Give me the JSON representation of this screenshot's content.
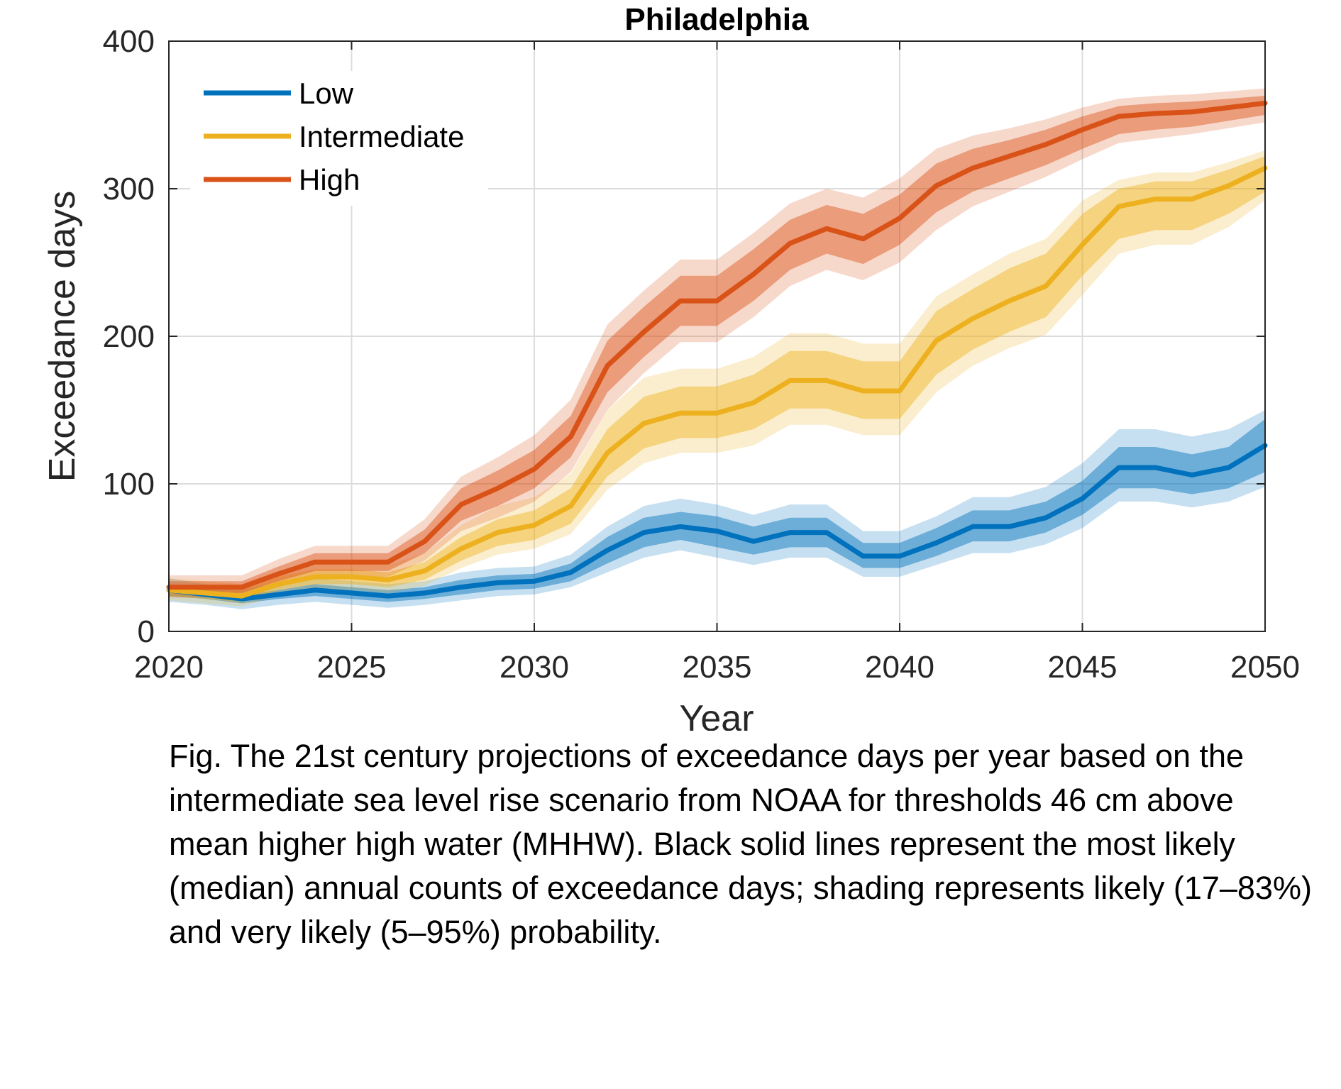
{
  "chart_data": {
    "type": "line",
    "title": "Philadelphia",
    "xlabel": "Year",
    "ylabel": "Exceedance days",
    "xlim": [
      2020,
      2050
    ],
    "ylim": [
      0,
      400
    ],
    "xticks": [
      "2020",
      "2025",
      "2030",
      "2035",
      "2040",
      "2045",
      "2050"
    ],
    "yticks": [
      "0",
      "100",
      "200",
      "300",
      "400"
    ],
    "grid": true,
    "legend_position": "top-left",
    "x": [
      2020,
      2021,
      2022,
      2023,
      2024,
      2025,
      2026,
      2027,
      2028,
      2029,
      2030,
      2031,
      2032,
      2033,
      2034,
      2035,
      2036,
      2037,
      2038,
      2039,
      2040,
      2041,
      2042,
      2043,
      2044,
      2045,
      2046,
      2047,
      2048,
      2049,
      2050
    ],
    "series": [
      {
        "name": "Low",
        "color": "#0072bd",
        "median": [
          28,
          25,
          22,
          25,
          28,
          26,
          24,
          26,
          30,
          33,
          34,
          40,
          55,
          67,
          71,
          68,
          61,
          67,
          67,
          51,
          51,
          60,
          71,
          71,
          77,
          90,
          111,
          111,
          106,
          111,
          126
        ],
        "likely_lo": [
          24,
          22,
          19,
          22,
          24,
          22,
          20,
          22,
          25,
          28,
          29,
          34,
          46,
          57,
          62,
          57,
          52,
          57,
          57,
          43,
          43,
          51,
          61,
          61,
          67,
          79,
          97,
          97,
          93,
          97,
          108
        ],
        "likely_hi": [
          32,
          28,
          25,
          28,
          32,
          30,
          28,
          30,
          35,
          38,
          39,
          46,
          64,
          77,
          81,
          78,
          71,
          77,
          77,
          60,
          60,
          70,
          82,
          82,
          88,
          102,
          125,
          125,
          120,
          125,
          144
        ],
        "vlikely_lo": [
          20,
          18,
          15,
          18,
          20,
          18,
          16,
          18,
          21,
          24,
          25,
          30,
          40,
          50,
          55,
          50,
          45,
          50,
          50,
          37,
          37,
          45,
          53,
          53,
          59,
          70,
          88,
          88,
          84,
          88,
          98
        ],
        "vlikely_hi": [
          36,
          32,
          29,
          32,
          36,
          34,
          32,
          34,
          40,
          43,
          44,
          52,
          71,
          85,
          90,
          86,
          79,
          86,
          86,
          68,
          68,
          78,
          91,
          91,
          98,
          114,
          137,
          137,
          132,
          137,
          150
        ]
      },
      {
        "name": "Intermediate",
        "color": "#edb120",
        "median": [
          28,
          26,
          24,
          32,
          37,
          37,
          35,
          41,
          56,
          67,
          72,
          85,
          121,
          141,
          148,
          148,
          155,
          170,
          170,
          163,
          163,
          197,
          212,
          224,
          234,
          262,
          288,
          293,
          293,
          302,
          314
        ],
        "likely_lo": [
          24,
          22,
          20,
          28,
          32,
          32,
          30,
          35,
          48,
          58,
          62,
          73,
          105,
          124,
          131,
          131,
          137,
          151,
          151,
          144,
          144,
          174,
          191,
          203,
          213,
          241,
          266,
          272,
          272,
          283,
          298
        ],
        "likely_hi": [
          32,
          30,
          28,
          37,
          42,
          42,
          40,
          47,
          64,
          76,
          82,
          97,
          137,
          159,
          166,
          166,
          174,
          190,
          190,
          183,
          183,
          217,
          232,
          246,
          256,
          283,
          300,
          305,
          305,
          313,
          322
        ],
        "vlikely_lo": [
          21,
          19,
          17,
          24,
          28,
          28,
          26,
          31,
          43,
          52,
          56,
          66,
          96,
          114,
          121,
          121,
          126,
          140,
          140,
          133,
          133,
          162,
          180,
          192,
          201,
          228,
          256,
          262,
          262,
          274,
          292
        ],
        "vlikely_hi": [
          36,
          34,
          32,
          41,
          47,
          47,
          45,
          53,
          72,
          85,
          91,
          107,
          150,
          172,
          178,
          178,
          186,
          202,
          202,
          195,
          195,
          227,
          242,
          256,
          266,
          292,
          306,
          311,
          311,
          318,
          326
        ]
      },
      {
        "name": "High",
        "color": "#d95319",
        "median": [
          30,
          30,
          30,
          39,
          47,
          47,
          47,
          61,
          86,
          97,
          110,
          132,
          180,
          203,
          224,
          224,
          242,
          263,
          273,
          266,
          280,
          302,
          314,
          322,
          330,
          340,
          349,
          351,
          352,
          355,
          358
        ],
        "likely_lo": [
          26,
          26,
          26,
          34,
          41,
          41,
          41,
          53,
          75,
          85,
          97,
          118,
          162,
          186,
          207,
          207,
          224,
          245,
          256,
          249,
          262,
          284,
          298,
          307,
          316,
          327,
          337,
          340,
          342,
          346,
          350
        ],
        "likely_hi": [
          34,
          34,
          34,
          44,
          53,
          53,
          53,
          69,
          97,
          109,
          123,
          146,
          197,
          220,
          241,
          241,
          259,
          279,
          289,
          283,
          296,
          317,
          327,
          333,
          340,
          349,
          356,
          358,
          359,
          361,
          363
        ],
        "vlikely_lo": [
          23,
          23,
          23,
          30,
          37,
          37,
          37,
          48,
          68,
          77,
          88,
          108,
          150,
          175,
          196,
          196,
          213,
          234,
          245,
          238,
          250,
          272,
          288,
          298,
          308,
          320,
          331,
          334,
          337,
          341,
          345
        ],
        "vlikely_hi": [
          38,
          38,
          38,
          49,
          58,
          58,
          58,
          76,
          105,
          118,
          133,
          157,
          208,
          231,
          252,
          252,
          270,
          290,
          300,
          294,
          307,
          327,
          336,
          341,
          347,
          355,
          361,
          363,
          364,
          366,
          368
        ]
      }
    ]
  },
  "caption": "Fig. The 21st century projections of exceedance days per year based on the intermediate sea level rise scenario from NOAA for thresholds 46 cm above mean higher high water (MHHW). Black solid lines represent the most likely (median) annual counts of exceedance days; shading represents likely (17–83%) and very likely (5–95%) probability."
}
